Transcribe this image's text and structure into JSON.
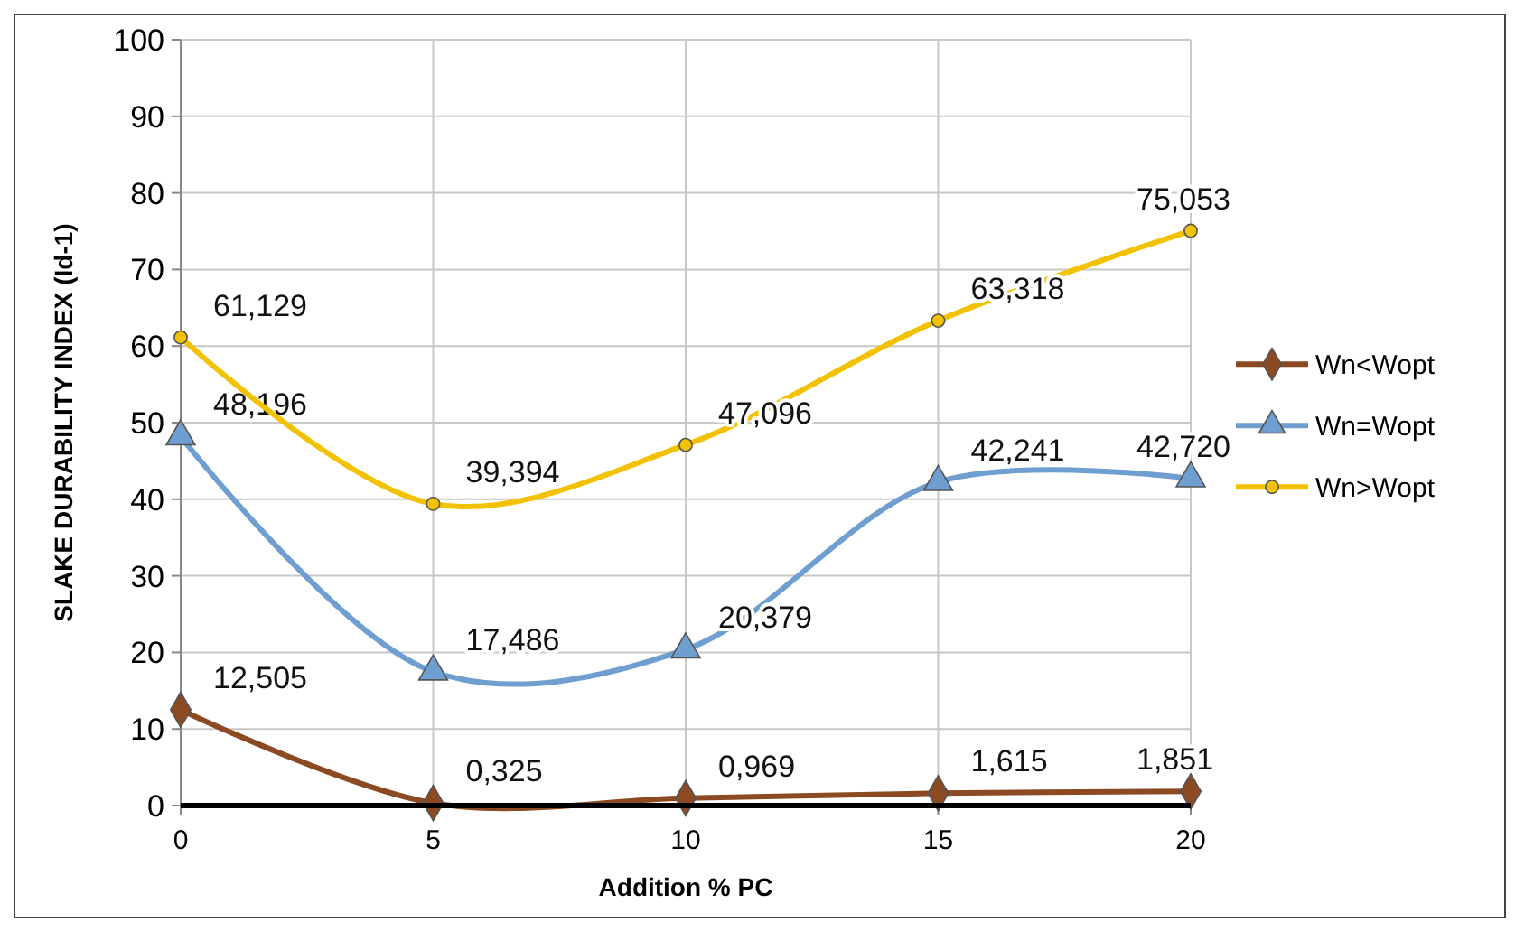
{
  "chart_data": {
    "type": "line",
    "xlabel": "Addition % PC",
    "ylabel": "SLAKE DURABILITY INDEX (Id-1)",
    "x": [
      0,
      5,
      10,
      15,
      20
    ],
    "xlim": [
      0,
      20
    ],
    "xticks": [
      0,
      5,
      10,
      15,
      20
    ],
    "ylim": [
      0,
      100
    ],
    "yticks": [
      0,
      10,
      20,
      30,
      40,
      50,
      60,
      70,
      80,
      90,
      100
    ],
    "grid": true,
    "legend": "right",
    "line_style": "solid",
    "series": [
      {
        "name": "Wn<Wopt",
        "color": "#8b4a22",
        "marker": "diamond",
        "values": [
          12.505,
          0.325,
          0.969,
          1.615,
          1.851
        ],
        "value_labels": [
          "12,505",
          "0,325",
          "0,969",
          "1,615",
          "1,851"
        ]
      },
      {
        "name": "Wn=Wopt",
        "color": "#6f9fd0",
        "marker": "triangle",
        "values": [
          48.196,
          17.486,
          20.379,
          42.241,
          42.72
        ],
        "value_labels": [
          "48,196",
          "17,486",
          "20,379",
          "42,241",
          "42,720"
        ]
      },
      {
        "name": "Wn>Wopt",
        "color": "#f2c200",
        "marker": "circle",
        "values": [
          61.129,
          39.394,
          47.096,
          63.318,
          75.053
        ],
        "value_labels": [
          "61,129",
          "39,394",
          "47,096",
          "63,318",
          "75,053"
        ]
      }
    ]
  }
}
